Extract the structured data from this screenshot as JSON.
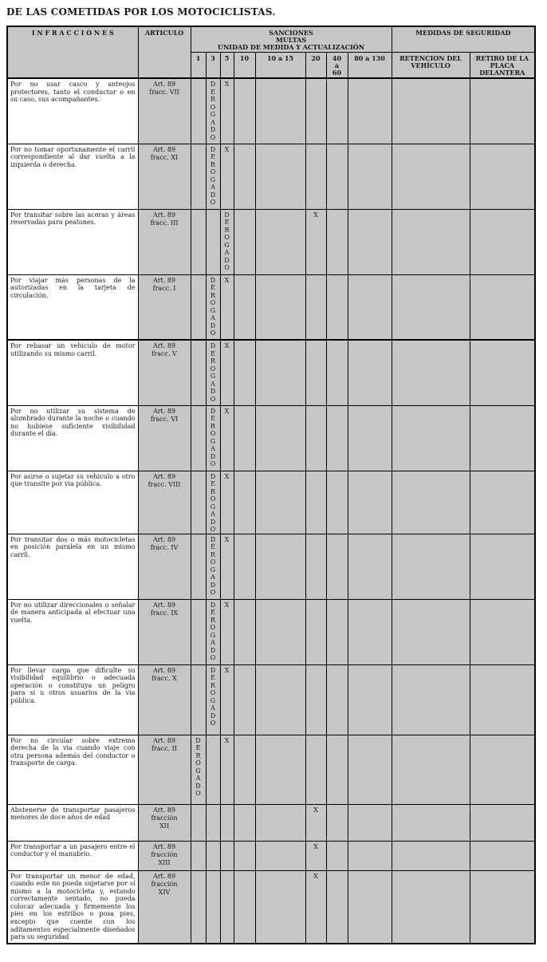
{
  "page": {
    "title": "DE LAS COMETIDAS POR LOS MOTOCICLISTAS."
  },
  "colors": {
    "cell_gray": "#c6c6c6",
    "first_column_bg": "#ffffff",
    "border": "#000000",
    "text": "#1a1a1a"
  },
  "table": {
    "headers": {
      "infracciones": "I N F R A C C I O N E S",
      "articulo": "ARTICULO",
      "sanciones": "SANCIONES\nMULTAS\nUNIDAD DE MEDIDA Y ACTUALIZACIÓN",
      "medidas": "MEDIDAS DE SEGURIDAD",
      "multa_cols": [
        "1",
        "3",
        "5",
        "10",
        "10 a 15",
        "20",
        "40\na\n60",
        "80 a 130"
      ],
      "medidas_cols": [
        "RETENCION DEL VEHÍCULO",
        "RETIRO DE LA PLACA DELANTERA"
      ]
    },
    "rows": [
      {
        "h": 82,
        "infraccion": "Por no usar casco y anteojos protectores, tanto el conductor o en su caso, sus acompañantes.",
        "articulo": "Art. 89\nfracc. VII",
        "multas": [
          "",
          "DEROGADO",
          "X",
          "",
          "",
          "",
          "",
          ""
        ],
        "medidas": [
          "",
          ""
        ]
      },
      {
        "h": 82,
        "infraccion": "Por no tomar oportunamente el carril correspondiente al dar vuelta a la izquierda o derecha.",
        "articulo": "Art. 89\nfracc. XI",
        "multas": [
          "",
          "DEROGADO",
          "X",
          "",
          "",
          "",
          "",
          ""
        ],
        "medidas": [
          "",
          ""
        ]
      },
      {
        "h": 82,
        "infraccion": "Por transitar sobre las aceras y áreas reservadas para peatones.",
        "articulo": "Art. 89\nfracc. III",
        "multas": [
          "",
          "",
          "DEROGADO",
          "",
          "",
          "X",
          "",
          ""
        ],
        "medidas": [
          "",
          ""
        ]
      },
      {
        "h": 82,
        "infraccion": "Por viajar más personas de la autorizadas en la tarjeta de circulación.",
        "articulo": "Art. 89\nfracc. I",
        "multas": [
          "",
          "DEROGADO",
          "X",
          "",
          "",
          "",
          "",
          ""
        ],
        "medidas": [
          "",
          ""
        ]
      },
      {
        "h": 82,
        "section_break": true,
        "infraccion": "Por rebasar un vehiculo de motor utilizando su mismo carril.",
        "articulo": "Art. 89\nfracc. V",
        "multas": [
          "",
          "DEROGADO",
          "X",
          "",
          "",
          "",
          "",
          ""
        ],
        "medidas": [
          "",
          ""
        ]
      },
      {
        "h": 82,
        "infraccion": "Por no utilizar su sistema de alumbrado durante la noche o cuando no hubiese suficiente visibilidad durante el día.",
        "articulo": "Art. 89\nfracc. VI",
        "multas": [
          "",
          "DEROGADO",
          "X",
          "",
          "",
          "",
          "",
          ""
        ],
        "medidas": [
          "",
          ""
        ]
      },
      {
        "h": 79,
        "infraccion": "Por asirse o sujetar su vehiculo a otro que transite por via pública.",
        "articulo": "Art. 89\nfracc. VIII",
        "multas": [
          "",
          "DEROGADO",
          "X",
          "",
          "",
          "",
          "",
          ""
        ],
        "medidas": [
          "",
          ""
        ]
      },
      {
        "h": 82,
        "infraccion": "Por transitar dos o más motocicletas en posición paralela en un mismo carril.",
        "articulo": "Art. 89\nfracc. IV",
        "multas": [
          "",
          "DEROGADO",
          "X",
          "",
          "",
          "",
          "",
          ""
        ],
        "medidas": [
          "",
          ""
        ]
      },
      {
        "h": 82,
        "infraccion": "Por no utilizar direccionales o señalar de manera anticipada al efectuar una vuelta.",
        "articulo": "Art. 89\nfracc. IX",
        "multas": [
          "",
          "DEROGADO",
          "X",
          "",
          "",
          "",
          "",
          ""
        ],
        "medidas": [
          "",
          ""
        ]
      },
      {
        "h": 88,
        "infraccion": "Por llevar carga que dificulte su visibilidad equilibrio o adecuada operación o constituya un peligro para si u otros usuarios de la via pública.",
        "articulo": "Art. 89\nfracc. X",
        "multas": [
          "",
          "DEROGADO",
          "X",
          "",
          "",
          "",
          "",
          ""
        ],
        "medidas": [
          "",
          ""
        ]
      },
      {
        "h": 87,
        "infraccion": "Por no circular sobre extrema derecha de la via cuando viaje con otra persona además del conductor o transporte de carga.",
        "articulo": "Art. 89\nfracc. II",
        "multas": [
          "DEROGADO",
          "",
          "X",
          "",
          "",
          "",
          "",
          ""
        ],
        "medidas": [
          "",
          ""
        ]
      },
      {
        "h": 46,
        "infraccion": "Abstenerse de transportar pasajeros menores de doce años de edad",
        "articulo": "Art. 89\nfracción\nXII",
        "multas": [
          "",
          "",
          "",
          "",
          "",
          "X",
          "",
          ""
        ],
        "medidas": [
          "",
          ""
        ]
      },
      {
        "h": 37,
        "infraccion": "Por transportar a un pasajero entre el conductor y el manubrio.",
        "articulo": "Art. 89\nfracción\nXIII",
        "multas": [
          "",
          "",
          "",
          "",
          "",
          "X",
          "",
          ""
        ],
        "medidas": [
          "",
          ""
        ]
      },
      {
        "h": 86,
        "infraccion": "Por transportar un menor de edad, cuando este no pueda sujetarse por sí mismo a la motocicleta y, estando correctamente sentado, no pueda colocar adecuada y firmemente los pies en los estribos o posa pies, excepto que cuente con los aditamentos especialmente diseñados para su seguridad",
        "articulo": "Art. 89\nfracción\nXIV",
        "multas": [
          "",
          "",
          "",
          "",
          "",
          "X",
          "",
          ""
        ],
        "medidas": [
          "",
          ""
        ]
      }
    ]
  }
}
